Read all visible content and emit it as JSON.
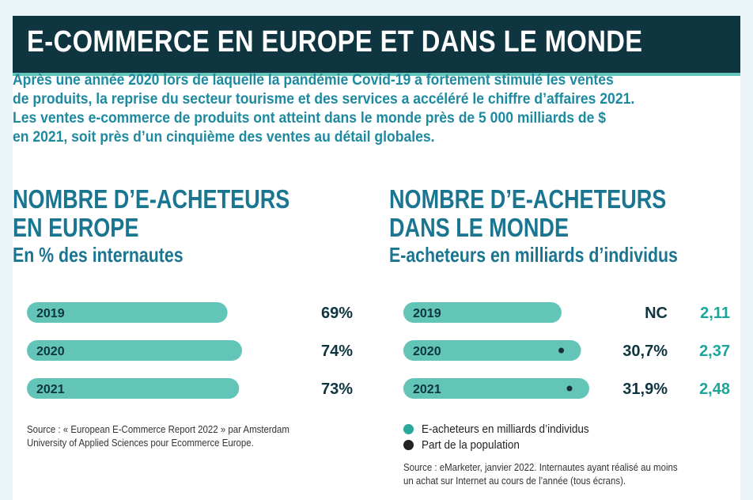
{
  "header": {
    "title": "E-COMMERCE EN EUROPE ET DANS LE MONDE"
  },
  "intro": {
    "lines": [
      "Après une année 2020 lors de laquelle la pandémie Covid-19 a fortement stimulé les ventes",
      "de produits, la reprise du secteur tourisme et des services a accéléré le chiffre d’affaires 2021.",
      "Les ventes e-commerce de produits ont atteint dans le monde près de 5 000 milliards de $",
      "en 2021, soit près d’un cinquième des ventes au détail globales."
    ]
  },
  "colors": {
    "accent": "#63c4b8",
    "title_bg": "#0f3640",
    "heading": "#1a7590",
    "value_teal": "#1aa79a",
    "dark_text": "#0f3640"
  },
  "legend": {
    "items": [
      {
        "label": "E-acheteurs en milliards d’individus",
        "color": "#2aa89b"
      },
      {
        "label": "Part de la population",
        "color": "#222222"
      }
    ]
  },
  "sources": {
    "left": [
      "Source : « European E-Commerce Report 2022 » par Amsterdam",
      "University of Applied Sciences pour Ecommerce Europe."
    ],
    "right": [
      "Source : eMarketer, janvier 2022. Internautes ayant réalisé au moins",
      "un achat sur Internet au cours de l’année (tous écrans)."
    ]
  },
  "chart_data": [
    {
      "type": "bar",
      "title": "NOMBRE D’E-ACHETEURS",
      "title_line2": "EN EUROPE",
      "subtitle": "En % des internautes",
      "categories": [
        "2019",
        "2020",
        "2021"
      ],
      "values": [
        69,
        74,
        73
      ],
      "value_labels": [
        "69%",
        "74%",
        "73%"
      ],
      "orientation": "horizontal"
    },
    {
      "type": "bar",
      "title": "NOMBRE D’E-ACHETEURS",
      "title_line2": "DANS LE MONDE",
      "subtitle": "E-acheteurs en milliards d’individus",
      "categories": [
        "2019",
        "2020",
        "2021"
      ],
      "series": [
        {
          "name": "E-acheteurs en milliards d’individus",
          "values": [
            2.11,
            2.37,
            2.48
          ],
          "labels": [
            "2,11",
            "2,37",
            "2,48"
          ]
        },
        {
          "name": "Part de la population",
          "values": [
            null,
            30.7,
            31.9
          ],
          "labels": [
            "NC",
            "30,7%",
            "31,9%"
          ]
        }
      ],
      "orientation": "horizontal"
    }
  ]
}
